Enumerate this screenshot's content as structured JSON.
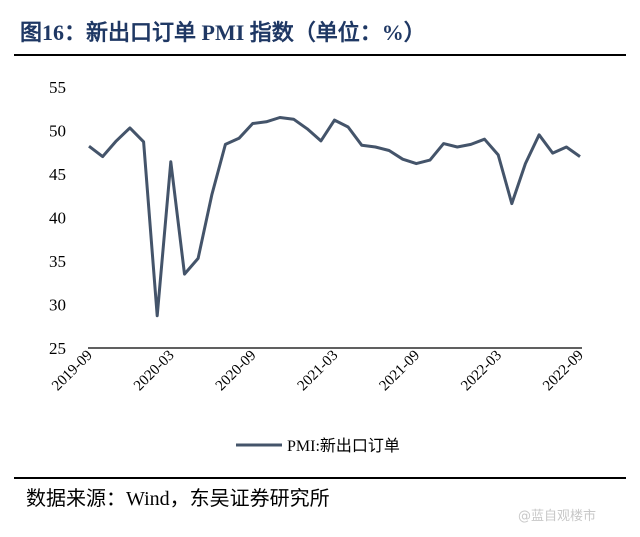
{
  "header": {
    "title": "图16：新出口订单 PMI 指数（单位：%）"
  },
  "footer": {
    "source": "数据来源：Wind，东吴证券研究所",
    "watermark": "@蓝自观楼市"
  },
  "colors": {
    "title": "#1f3864",
    "series": "#44546a",
    "axis": "#000000"
  },
  "chart_data": {
    "type": "line",
    "title": "新出口订单 PMI 指数（单位：%）",
    "xlabel": "",
    "ylabel": "",
    "ylim": [
      25,
      55
    ],
    "yticks": [
      25,
      30,
      35,
      40,
      45,
      50,
      55
    ],
    "xtick_labels": [
      "2019-09",
      "2020-03",
      "2020-09",
      "2021-03",
      "2021-09",
      "2022-03",
      "2022-09"
    ],
    "legend_position": "bottom",
    "grid": false,
    "x": [
      "2019-09",
      "2019-10",
      "2019-11",
      "2019-12",
      "2020-01",
      "2020-02",
      "2020-03",
      "2020-04",
      "2020-05",
      "2020-06",
      "2020-07",
      "2020-08",
      "2020-09",
      "2020-10",
      "2020-11",
      "2020-12",
      "2021-01",
      "2021-02",
      "2021-03",
      "2021-04",
      "2021-05",
      "2021-06",
      "2021-07",
      "2021-08",
      "2021-09",
      "2021-10",
      "2021-11",
      "2021-12",
      "2022-01",
      "2022-02",
      "2022-03",
      "2022-04",
      "2022-05",
      "2022-06",
      "2022-07",
      "2022-08",
      "2022-09"
    ],
    "series": [
      {
        "name": "PMI:新出口订单",
        "values": [
          48.2,
          47.0,
          48.8,
          50.3,
          48.7,
          28.7,
          46.4,
          33.5,
          35.3,
          42.6,
          48.4,
          49.1,
          50.8,
          51.0,
          51.5,
          51.3,
          50.2,
          48.8,
          51.2,
          50.4,
          48.3,
          48.1,
          47.7,
          46.7,
          46.2,
          46.6,
          48.5,
          48.1,
          48.4,
          49.0,
          47.2,
          41.6,
          46.2,
          49.5,
          47.4,
          48.1,
          47.0
        ]
      }
    ]
  }
}
